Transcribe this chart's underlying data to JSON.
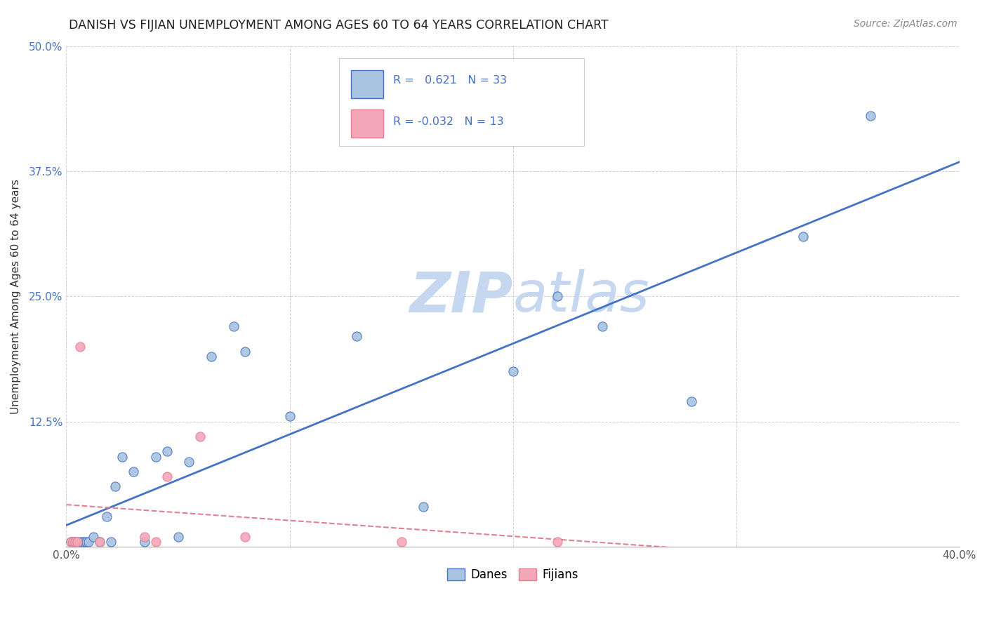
{
  "title": "DANISH VS FIJIAN UNEMPLOYMENT AMONG AGES 60 TO 64 YEARS CORRELATION CHART",
  "source": "Source: ZipAtlas.com",
  "ylabel": "Unemployment Among Ages 60 to 64 years",
  "xlim": [
    0.0,
    0.4
  ],
  "ylim": [
    0.0,
    0.5
  ],
  "xticks": [
    0.0,
    0.1,
    0.2,
    0.3,
    0.4
  ],
  "yticks": [
    0.0,
    0.125,
    0.25,
    0.375,
    0.5
  ],
  "xticklabels": [
    "0.0%",
    "",
    "",
    "",
    "40.0%"
  ],
  "yticklabels": [
    "",
    "12.5%",
    "25.0%",
    "37.5%",
    "50.0%"
  ],
  "danes_color": "#a8c4e0",
  "fijians_color": "#f4a7b9",
  "danes_line_color": "#4472c4",
  "fijians_line_color": "#e08090",
  "R_danes": 0.621,
  "N_danes": 33,
  "R_fijians": -0.032,
  "N_fijians": 13,
  "danes_x": [
    0.002,
    0.003,
    0.004,
    0.005,
    0.006,
    0.007,
    0.008,
    0.009,
    0.01,
    0.012,
    0.015,
    0.018,
    0.02,
    0.022,
    0.025,
    0.03,
    0.035,
    0.04,
    0.045,
    0.05,
    0.055,
    0.065,
    0.075,
    0.08,
    0.1,
    0.13,
    0.16,
    0.2,
    0.22,
    0.24,
    0.28,
    0.33,
    0.36
  ],
  "danes_y": [
    0.005,
    0.005,
    0.005,
    0.005,
    0.005,
    0.005,
    0.005,
    0.005,
    0.005,
    0.01,
    0.005,
    0.03,
    0.005,
    0.06,
    0.09,
    0.075,
    0.005,
    0.09,
    0.095,
    0.01,
    0.085,
    0.19,
    0.22,
    0.195,
    0.13,
    0.21,
    0.04,
    0.175,
    0.25,
    0.22,
    0.145,
    0.31,
    0.43
  ],
  "fijians_x": [
    0.002,
    0.003,
    0.004,
    0.005,
    0.006,
    0.015,
    0.035,
    0.04,
    0.045,
    0.06,
    0.08,
    0.15,
    0.22
  ],
  "fijians_y": [
    0.005,
    0.005,
    0.005,
    0.005,
    0.2,
    0.005,
    0.01,
    0.005,
    0.07,
    0.11,
    0.01,
    0.005,
    0.005
  ],
  "background_color": "#ffffff",
  "grid_color": "#cccccc",
  "watermark_zip": "ZIP",
  "watermark_atlas": "atlas",
  "watermark_color_zip": "#c5d8f0",
  "watermark_color_atlas": "#c5d8f0"
}
